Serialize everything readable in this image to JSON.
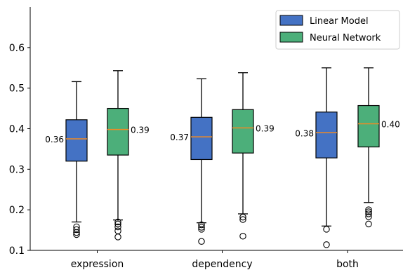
{
  "chart_data": {
    "type": "box",
    "categories": [
      "expression",
      "dependency",
      "both"
    ],
    "ylim": [
      0.1,
      0.7
    ],
    "yticks": [
      0.1,
      0.2,
      0.3,
      0.4,
      0.5,
      0.6
    ],
    "ytick_labels": [
      "0.1",
      "0.2",
      "0.3",
      "0.4",
      "0.5",
      "0.6"
    ],
    "legend_position": "top-right",
    "series": [
      {
        "name": "Linear Model",
        "color": "#4472c4",
        "boxes": [
          {
            "min": 0.17,
            "q1": 0.32,
            "median": 0.375,
            "q3": 0.422,
            "max": 0.516,
            "outliers": [
              0.158,
              0.151,
              0.144,
              0.139
            ],
            "label": "0.36"
          },
          {
            "min": 0.168,
            "q1": 0.324,
            "median": 0.38,
            "q3": 0.428,
            "max": 0.523,
            "outliers": [
              0.163,
              0.157,
              0.152,
              0.122
            ],
            "label": "0.37"
          },
          {
            "min": 0.16,
            "q1": 0.328,
            "median": 0.39,
            "q3": 0.441,
            "max": 0.55,
            "outliers": [
              0.152,
              0.114
            ],
            "label": "0.38"
          }
        ]
      },
      {
        "name": "Neural Network",
        "color": "#4caf7a",
        "boxes": [
          {
            "min": 0.175,
            "q1": 0.335,
            "median": 0.398,
            "q3": 0.45,
            "max": 0.543,
            "outliers": [
              0.17,
              0.165,
              0.158,
              0.148,
              0.133
            ],
            "label": "0.39"
          },
          {
            "min": 0.19,
            "q1": 0.34,
            "median": 0.402,
            "q3": 0.447,
            "max": 0.538,
            "outliers": [
              0.182,
              0.176,
              0.135
            ],
            "label": "0.39"
          },
          {
            "min": 0.218,
            "q1": 0.355,
            "median": 0.412,
            "q3": 0.457,
            "max": 0.55,
            "outliers": [
              0.2,
              0.195,
              0.19,
              0.183,
              0.165
            ],
            "label": "0.40"
          }
        ]
      }
    ]
  }
}
